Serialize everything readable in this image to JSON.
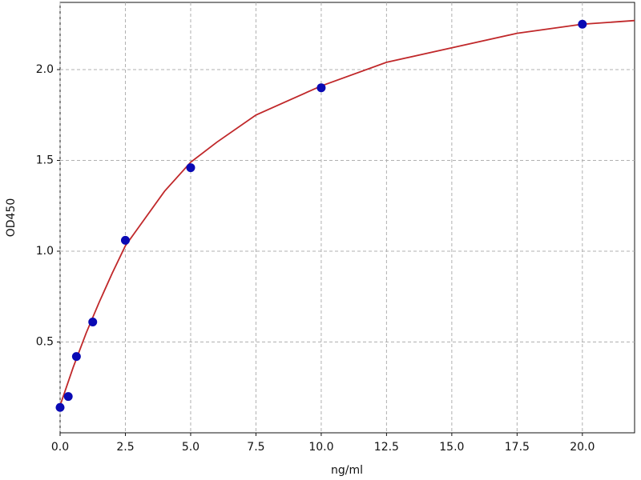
{
  "chart_data": {
    "type": "scatter",
    "xlabel": "ng/ml",
    "ylabel": "OD450",
    "xlim": [
      0,
      22
    ],
    "ylim": [
      0,
      2.37
    ],
    "xticks": [
      {
        "value": 0,
        "label": "0.0"
      },
      2.5,
      {
        "value": 5,
        "label": "5.0"
      },
      7.5,
      {
        "value": 10,
        "label": "10.0"
      },
      12.5,
      {
        "value": 15,
        "label": "15.0"
      },
      17.5,
      {
        "value": 20,
        "label": "20.0"
      }
    ],
    "yticks": [
      0.5,
      {
        "value": 1,
        "label": "1.0"
      },
      1.5,
      {
        "value": 2,
        "label": "2.0"
      }
    ],
    "grid": true,
    "series": [
      {
        "type": "line",
        "color": "#c0282a",
        "x": [
          0,
          0.5,
          1,
          1.5,
          2,
          2.5,
          3,
          4,
          5,
          6,
          7.5,
          10,
          12.5,
          15,
          17.5,
          20,
          22
        ],
        "values": [
          0.15,
          0.36,
          0.55,
          0.72,
          0.88,
          1.03,
          1.13,
          1.33,
          1.49,
          1.6,
          1.75,
          1.91,
          2.04,
          2.12,
          2.2,
          2.25,
          2.27
        ]
      },
      {
        "type": "scatter",
        "color": "#0a0ab4",
        "x": [
          0,
          0.3125,
          0.625,
          1.25,
          2.5,
          5,
          10,
          20
        ],
        "values": [
          0.14,
          0.2,
          0.42,
          0.61,
          1.06,
          1.46,
          1.9,
          2.25
        ]
      }
    ]
  }
}
